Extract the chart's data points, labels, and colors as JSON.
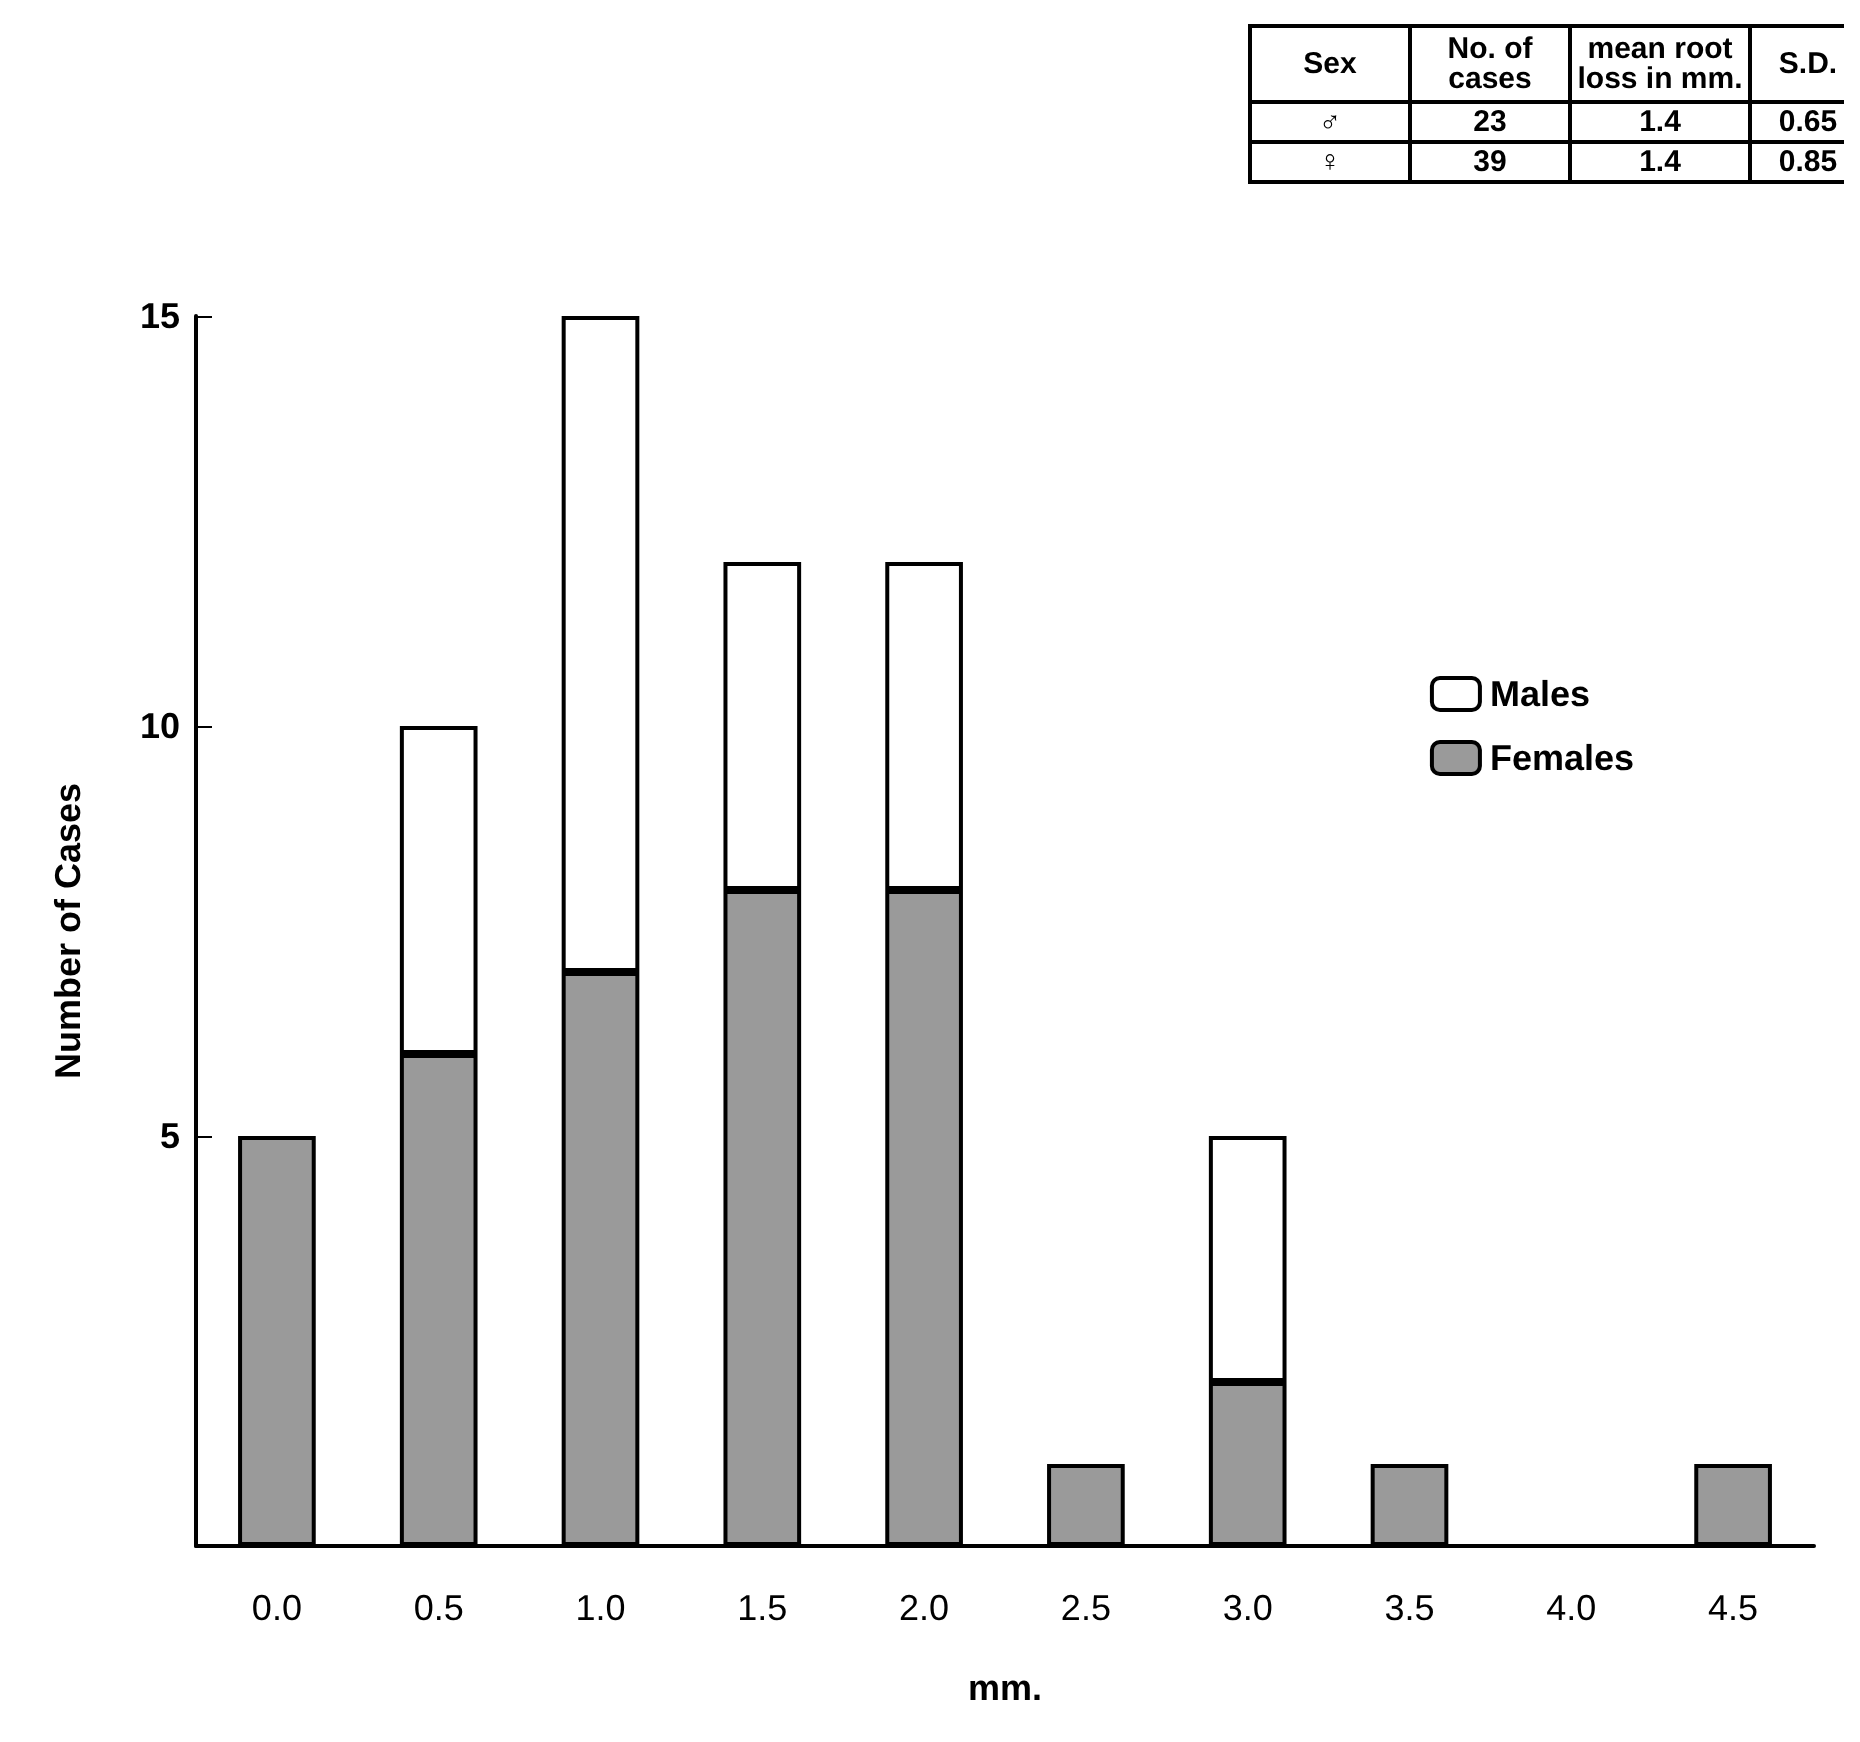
{
  "chart_data": {
    "type": "bar",
    "stacked": true,
    "xlabel": "mm.",
    "ylabel": "Number of Cases",
    "categories": [
      "0.0",
      "0.5",
      "1.0",
      "1.5",
      "2.0",
      "2.5",
      "3.0",
      "3.5",
      "4.0",
      "4.5"
    ],
    "series": [
      {
        "name": "Females",
        "color": "#9a9a9a",
        "values": [
          5,
          6,
          7,
          8,
          8,
          1,
          2,
          1,
          0,
          1
        ]
      },
      {
        "name": "Males",
        "color": "#ffffff",
        "values": [
          0,
          4,
          8,
          4,
          4,
          0,
          3,
          0,
          0,
          0
        ]
      }
    ],
    "ylim": [
      0,
      15
    ],
    "yticks": [
      5,
      10,
      15
    ],
    "grid": false,
    "legend": "right",
    "annotations": [
      "Sex",
      "No. of\ncases",
      "mean root\nloss in mm.",
      "S.D.",
      "♂",
      "23",
      "1.4",
      "0.65",
      "♀",
      "39",
      "1.4",
      "0.85"
    ]
  }
}
